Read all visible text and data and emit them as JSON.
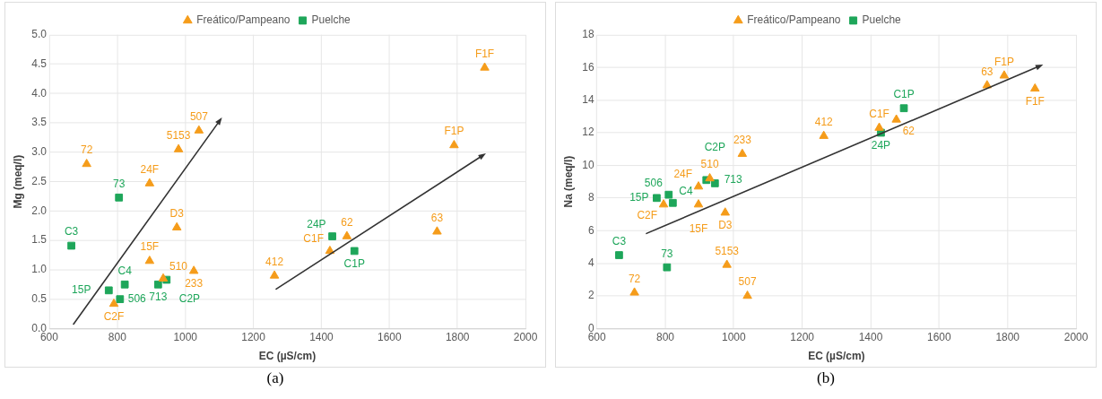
{
  "chart_data": [
    {
      "type": "scatter",
      "xlabel": "EC (µS/cm)",
      "ylabel": "Mg (meq/l)",
      "legend": "top",
      "grid": true,
      "xlim": [
        600,
        2000
      ],
      "xticks": [
        600,
        800,
        1000,
        1200,
        1400,
        1600,
        1800,
        2000
      ],
      "ylim": [
        0,
        5
      ],
      "yticks": [
        {
          "value": 0,
          "label": "0.0"
        },
        0.5,
        {
          "value": 1,
          "label": "1.0"
        },
        1.5,
        {
          "value": 2,
          "label": "2.0"
        },
        2.5,
        {
          "value": 3,
          "label": "3.0"
        },
        3.5,
        {
          "value": 4,
          "label": "4.0"
        },
        4.5,
        {
          "value": 5,
          "label": "5.0"
        }
      ],
      "series": [
        {
          "name": "Freático/Pampeano",
          "color": "#f59c1a",
          "marker": "triangle",
          "x": [
            710,
            895,
            980,
            1040,
            975,
            895,
            935,
            1025,
            790,
            1262,
            1425,
            1475,
            1740,
            1790,
            1880
          ],
          "values": [
            2.8,
            2.47,
            3.05,
            3.37,
            1.72,
            1.15,
            0.85,
            0.98,
            0.42,
            0.9,
            1.32,
            1.57,
            1.65,
            3.12,
            4.44
          ]
        },
        {
          "name": "Puelche",
          "color": "#1ea65a",
          "marker": "square",
          "x": [
            665,
            805,
            775,
            808,
            822,
            920,
            945,
            1432,
            1497
          ],
          "values": [
            1.41,
            2.23,
            0.65,
            0.5,
            0.75,
            0.75,
            0.83,
            1.57,
            1.32
          ]
        }
      ],
      "annotations": [
        {
          "text": "72",
          "x": 710,
          "y": 2.8
        },
        {
          "text": "24F",
          "x": 895,
          "y": 2.47
        },
        {
          "text": "5153",
          "x": 980,
          "y": 3.05
        },
        {
          "text": "507",
          "x": 1040,
          "y": 3.37
        },
        {
          "text": "D3",
          "x": 975,
          "y": 1.72
        },
        {
          "text": "15F",
          "x": 895,
          "y": 1.15
        },
        {
          "text": "510",
          "x": 935,
          "y": 0.85
        },
        {
          "text": "233",
          "x": 1025,
          "y": 0.98
        },
        {
          "text": "C2F",
          "x": 790,
          "y": 0.42
        },
        {
          "text": "412",
          "x": 1262,
          "y": 0.9
        },
        {
          "text": "C1F",
          "x": 1425,
          "y": 1.32
        },
        {
          "text": "62",
          "x": 1475,
          "y": 1.57
        },
        {
          "text": "63",
          "x": 1740,
          "y": 1.65
        },
        {
          "text": "F1P",
          "x": 1790,
          "y": 3.12
        },
        {
          "text": "F1F",
          "x": 1880,
          "y": 4.44
        },
        {
          "text": "C3",
          "x": 665,
          "y": 1.41
        },
        {
          "text": "73",
          "x": 805,
          "y": 2.23
        },
        {
          "text": "15P",
          "x": 775,
          "y": 0.65
        },
        {
          "text": "506",
          "x": 808,
          "y": 0.5
        },
        {
          "text": "C4",
          "x": 822,
          "y": 0.75
        },
        {
          "text": "713",
          "x": 920,
          "y": 0.75
        },
        {
          "text": "C2P",
          "x": 945,
          "y": 0.83
        },
        {
          "text": "24P",
          "x": 1432,
          "y": 1.57
        },
        {
          "text": "C1P",
          "x": 1497,
          "y": 1.32
        },
        "(a)"
      ]
    },
    {
      "type": "scatter",
      "xlabel": "EC (µS/cm)",
      "ylabel": "Na (meq/l)",
      "legend": "top",
      "grid": true,
      "xlim": [
        600,
        2000
      ],
      "xticks": [
        600,
        800,
        1000,
        1200,
        1400,
        1600,
        1800,
        2000
      ],
      "ylim": [
        0,
        18
      ],
      "yticks": [
        0,
        2,
        4,
        6,
        8,
        10,
        12,
        14,
        16,
        18
      ],
      "series": [
        {
          "name": "Freático/Pampeano",
          "color": "#f59c1a",
          "marker": "triangle",
          "x": [
            710,
            1040,
            980,
            975,
            897,
            897,
            930,
            795,
            1025,
            1263,
            1425,
            1475,
            1740,
            1790,
            1880
          ],
          "values": [
            2.2,
            2.0,
            3.9,
            7.1,
            7.6,
            8.7,
            9.2,
            7.6,
            10.7,
            11.8,
            12.3,
            12.8,
            14.9,
            15.5,
            14.7
          ]
        },
        {
          "name": "Puelche",
          "color": "#1ea65a",
          "marker": "square",
          "x": [
            665,
            805,
            775,
            810,
            822,
            920,
            945,
            1430,
            1497
          ],
          "values": [
            4.5,
            3.75,
            8.0,
            8.2,
            7.7,
            9.1,
            8.9,
            12.0,
            13.5
          ]
        }
      ],
      "annotations": [
        {
          "text": "72",
          "x": 710,
          "y": 2.2
        },
        {
          "text": "507",
          "x": 1040,
          "y": 2.0
        },
        {
          "text": "5153",
          "x": 980,
          "y": 3.9
        },
        {
          "text": "D3",
          "x": 975,
          "y": 7.1
        },
        {
          "text": "15F",
          "x": 897,
          "y": 7.6
        },
        {
          "text": "24F",
          "x": 897,
          "y": 8.7
        },
        {
          "text": "510",
          "x": 930,
          "y": 9.2
        },
        {
          "text": "C2F",
          "x": 795,
          "y": 7.6
        },
        {
          "text": "233",
          "x": 1025,
          "y": 10.7
        },
        {
          "text": "412",
          "x": 1263,
          "y": 11.8
        },
        {
          "text": "C1F",
          "x": 1425,
          "y": 12.3
        },
        {
          "text": "62",
          "x": 1475,
          "y": 12.8
        },
        {
          "text": "63",
          "x": 1740,
          "y": 14.9
        },
        {
          "text": "F1P",
          "x": 1790,
          "y": 15.5
        },
        {
          "text": "F1F",
          "x": 1880,
          "y": 14.7
        },
        {
          "text": "C3",
          "x": 665,
          "y": 4.5
        },
        {
          "text": "73",
          "x": 805,
          "y": 3.75
        },
        {
          "text": "15P",
          "x": 775,
          "y": 8.0
        },
        {
          "text": "506",
          "x": 810,
          "y": 8.2
        },
        {
          "text": "C4",
          "x": 822,
          "y": 7.7
        },
        {
          "text": "713",
          "x": 920,
          "y": 9.1
        },
        {
          "text": "C2P",
          "x": 945,
          "y": 8.9
        },
        {
          "text": "24P",
          "x": 1430,
          "y": 12.0
        },
        {
          "text": "C1P",
          "x": 1497,
          "y": 13.5
        },
        "(b)"
      ]
    }
  ]
}
